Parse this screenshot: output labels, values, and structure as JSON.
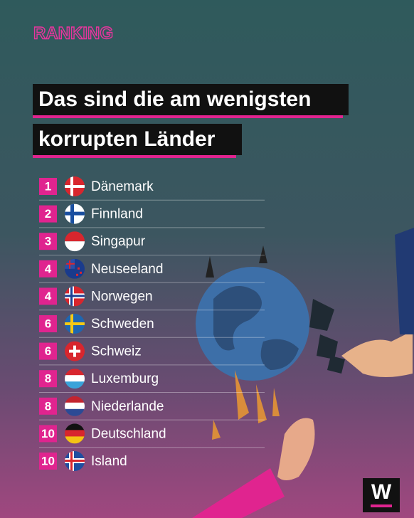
{
  "header": {
    "label": "RANKING",
    "title_lines": [
      "Das sind die am wenigsten",
      "korrupten Länder"
    ]
  },
  "ranking": [
    {
      "rank": "1",
      "country": "Dänemark"
    },
    {
      "rank": "2",
      "country": "Finnland"
    },
    {
      "rank": "3",
      "country": "Singapur"
    },
    {
      "rank": "4",
      "country": "Neuseeland"
    },
    {
      "rank": "4",
      "country": "Norwegen"
    },
    {
      "rank": "6",
      "country": "Schweden"
    },
    {
      "rank": "6",
      "country": "Schweiz"
    },
    {
      "rank": "8",
      "country": "Luxemburg"
    },
    {
      "rank": "8",
      "country": "Niederlande"
    },
    {
      "rank": "10",
      "country": "Deutschland"
    },
    {
      "rank": "10",
      "country": "Island"
    }
  ],
  "logo": "W"
}
